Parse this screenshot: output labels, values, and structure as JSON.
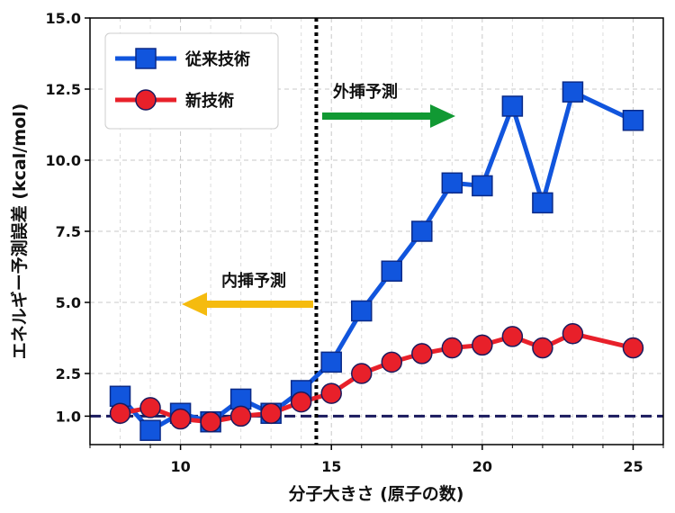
{
  "chart_data": {
    "type": "line",
    "xlabel": "分子大きさ (原子の数)",
    "ylabel": "エネルギー予測誤差 (kcal/mol)",
    "xlim": [
      7,
      26
    ],
    "ylim": [
      0.0,
      15.0
    ],
    "xticks": [
      10,
      15,
      20,
      25
    ],
    "xtick_labels": [
      "10",
      "15",
      "20",
      "25"
    ],
    "yticks": [
      1.0,
      2.5,
      5.0,
      7.5,
      10.0,
      12.5,
      15.0
    ],
    "ytick_labels": [
      "1.0",
      "2.5",
      "5.0",
      "7.5",
      "10.0",
      "12.5",
      "15.0"
    ],
    "grid": true,
    "legend_position": "top-left",
    "series": [
      {
        "name": "従来技術",
        "color": "#1155dd",
        "marker": "square",
        "x": [
          8,
          9,
          10,
          11,
          12,
          13,
          14,
          15,
          16,
          17,
          18,
          19,
          20,
          21,
          22,
          23,
          25
        ],
        "y": [
          1.7,
          0.5,
          1.1,
          0.8,
          1.6,
          1.1,
          1.9,
          2.9,
          4.7,
          6.1,
          7.5,
          9.2,
          9.1,
          11.9,
          8.5,
          12.4,
          11.4
        ]
      },
      {
        "name": "新技術",
        "color": "#e8202a",
        "marker": "circle",
        "x": [
          8,
          9,
          10,
          11,
          12,
          13,
          14,
          15,
          16,
          17,
          18,
          19,
          20,
          21,
          22,
          23,
          25
        ],
        "y": [
          1.1,
          1.3,
          0.9,
          0.8,
          1.0,
          1.1,
          1.5,
          1.8,
          2.5,
          2.9,
          3.2,
          3.4,
          3.5,
          3.8,
          3.4,
          3.9,
          3.4
        ]
      }
    ],
    "reference_lines": [
      {
        "orientation": "horizontal",
        "value": 1.0,
        "style": "dashed",
        "color": "#1a1a5e"
      },
      {
        "orientation": "vertical",
        "value": 14.5,
        "style": "dotted",
        "color": "#000000"
      }
    ],
    "annotations": [
      {
        "text": "外挿予測",
        "arrow_direction": "right",
        "arrow_color": "#119933"
      },
      {
        "text": "内挿予測",
        "arrow_direction": "left",
        "arrow_color": "#f5bb0f"
      }
    ]
  }
}
